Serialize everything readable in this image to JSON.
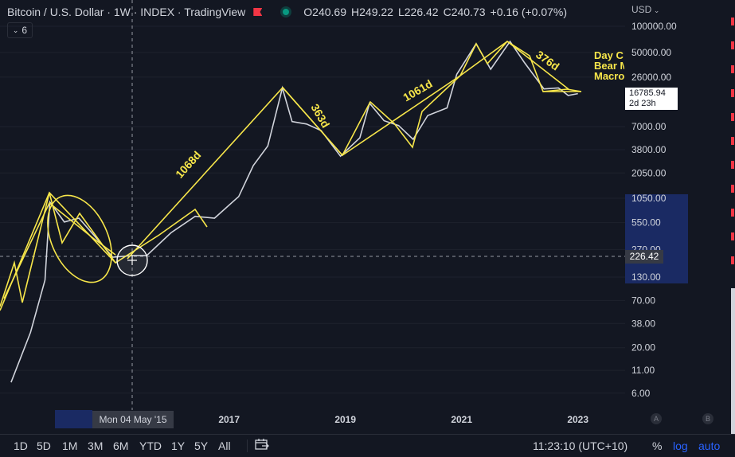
{
  "header": {
    "title": "Bitcoin / U.S. Dollar · 1W · INDEX · TradingView",
    "ohlc": {
      "o_label": "O",
      "o": "240.69",
      "h_label": "H",
      "h": "249.22",
      "l_label": "L",
      "l": "226.42",
      "c_label": "C",
      "c": "240.73",
      "change": "+0.16 (+0.07%)"
    },
    "indicator_count": "6",
    "currency": "USD"
  },
  "annotation_text": [
    "Day C",
    "Bear M",
    "Macro"
  ],
  "last_price": {
    "value": "16785.94",
    "countdown": "2d 23h"
  },
  "crosshair": {
    "price": "226.42",
    "date": "Mon 04 May '15"
  },
  "price_axis": [
    "100000.00",
    "50000.00",
    "26000.00",
    "7000.00",
    "3800.00",
    "2050.00",
    "1050.00",
    "550.00",
    "270.00",
    "130.00",
    "70.00",
    "38.00",
    "20.00",
    "11.00",
    "6.00"
  ],
  "time_axis": [
    "2017",
    "2019",
    "2021",
    "2023"
  ],
  "drawing_labels": [
    "1068d",
    "363d",
    "1061d",
    "376d"
  ],
  "timeframes": [
    "1D",
    "5D",
    "1M",
    "3M",
    "6M",
    "YTD",
    "1Y",
    "5Y",
    "All"
  ],
  "clock": "11:23:10 (UTC+10)",
  "scale_buttons": {
    "percent": "%",
    "log": "log",
    "auto": "auto"
  },
  "ab_labels": [
    "A",
    "B"
  ],
  "colors": {
    "background": "#131722",
    "drawing": "#f7e64a",
    "candle": "#d1d4dc",
    "selection": "#1e3a8a",
    "up": "#089981",
    "down": "#f23645",
    "accent": "#2962ff"
  },
  "chart_data": {
    "type": "line",
    "log_scale": true,
    "series": [
      {
        "x": [
          "2013-04",
          "2013-08",
          "2013-11",
          "2013-12",
          "2014-03",
          "2014-06",
          "2014-09",
          "2015-01",
          "2015-05",
          "2015-08",
          "2016-01",
          "2016-06",
          "2016-10",
          "2017-03",
          "2017-06",
          "2017-09",
          "2017-12",
          "2018-02",
          "2018-05",
          "2018-08",
          "2018-12",
          "2019-04",
          "2019-06",
          "2019-09",
          "2019-12",
          "2020-03",
          "2020-06",
          "2020-10",
          "2020-12",
          "2021-04",
          "2021-07",
          "2021-11",
          "2022-02",
          "2022-06",
          "2022-09",
          "2022-11",
          "2023-01"
        ],
        "y": [
          8,
          30,
          120,
          950,
          560,
          620,
          400,
          220,
          230,
          230,
          420,
          650,
          620,
          1100,
          2500,
          4200,
          19500,
          8000,
          7500,
          6300,
          3200,
          5200,
          13000,
          8200,
          7200,
          5000,
          9400,
          11500,
          28000,
          63000,
          32000,
          67000,
          38000,
          19000,
          19500,
          16000,
          16785
        ]
      }
    ]
  }
}
